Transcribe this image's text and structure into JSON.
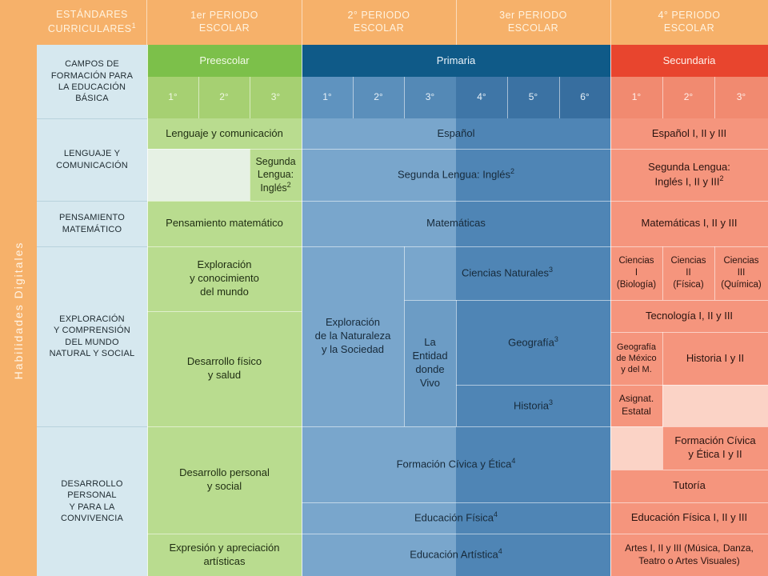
{
  "side_label": "Habilidades Digitales",
  "header": {
    "col0": "ESTÁNDARES\nCURRICULARES",
    "col0_sup": "1",
    "p1": "1er PERIODO\nESCOLAR",
    "p2": "2° PERIODO\nESCOLAR",
    "p3": "3er PERIODO\nESCOLAR",
    "p4": "4° PERIODO\nESCOLAR"
  },
  "campos_label": "CAMPOS DE\nFORMACIÓN PARA\nLA EDUCACIÓN\nBÁSICA",
  "levels": {
    "preescolar": "Preescolar",
    "primaria": "Primaria",
    "secundaria": "Secundaria"
  },
  "grades": {
    "pre": [
      "1°",
      "2°",
      "3°"
    ],
    "pri": [
      "1°",
      "2°",
      "3°",
      "4°",
      "5°",
      "6°"
    ],
    "sec": [
      "1°",
      "2°",
      "3°"
    ]
  },
  "rows": {
    "lenguaje": "LENGUAJE Y\nCOMUNICACIÓN",
    "pensamiento": "PENSAMIENTO\nMATEMÁTICO",
    "exploracion": "EXPLORACIÓN\nY COMPRENSIÓN\nDEL MUNDO\nNATURAL Y SOCIAL",
    "desarrollo": "DESARROLLO\nPERSONAL\nY PARA LA\nCONVIVENCIA"
  },
  "pre": {
    "lenguaje": "Lenguaje y comunicación",
    "segunda": "Segunda\nLengua:\nInglés",
    "segunda_sup": "2",
    "matematico": "Pensamiento matemático",
    "exploracion": "Exploración\ny conocimiento\ndel mundo",
    "fisico": "Desarrollo físico\ny salud",
    "personal": "Desarrollo personal\ny social",
    "artistica": "Expresión y apreciación\nartísticas"
  },
  "pri": {
    "espanol": "Español",
    "ingles": "Segunda Lengua: Inglés",
    "ingles_sup": "2",
    "matematicas": "Matemáticas",
    "naturaleza": "Exploración\nde la Naturaleza\ny la Sociedad",
    "entidad": "La\nEntidad\ndonde\nVivo",
    "ciencias": "Ciencias Naturales",
    "ciencias_sup": "3",
    "geografia": "Geografía",
    "geografia_sup": "3",
    "historia": "Historia",
    "historia_sup": "3",
    "civica": "Formación Cívica y Ética",
    "civica_sup": "4",
    "fisica": "Educación Física",
    "fisica_sup": "4",
    "artistica": "Educación Artística",
    "artistica_sup": "4"
  },
  "sec": {
    "espanol": "Español I, II y III",
    "ingles": "Segunda Lengua:\nInglés I, II y III",
    "ingles_sup": "2",
    "matematicas": "Matemáticas  I, II y III",
    "ciencias1": "Ciencias\nI\n(Biología)",
    "ciencias2": "Ciencias\nII\n(Física)",
    "ciencias3": "Ciencias\nIII\n(Química)",
    "tecnologia": "Tecnología  I, II y III",
    "geografia": "Geografía\nde México\ny del M.",
    "historia": "Historia I y II",
    "asignatura": "Asignat.\nEstatal",
    "civica": "Formación Cívica\ny Ética I y II",
    "tutoria": "Tutoría",
    "fisica": "Educación Física I, II y III",
    "artes": "Artes I, II y III (Música, Danza,\nTeatro o Artes Visuales)"
  },
  "colors": {
    "orange": "#f6b16a",
    "green": "#7cc04a",
    "blue_dark": "#0f5a88",
    "red": "#e8452e"
  }
}
